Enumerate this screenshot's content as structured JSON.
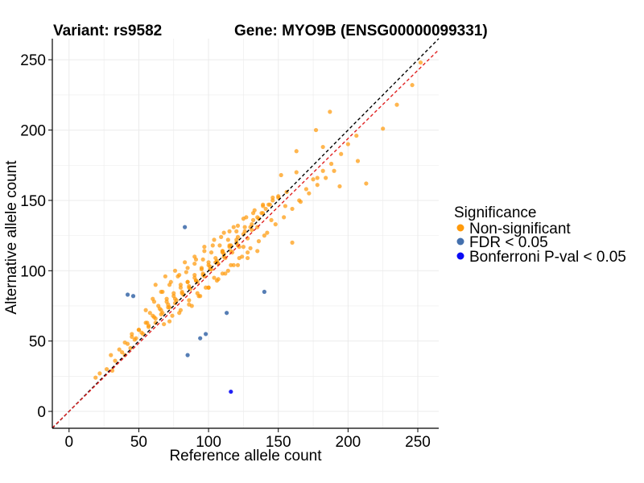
{
  "titles": {
    "variant": "Variant: rs9582",
    "gene": "Gene: MYO9B (ENSG00000099331)"
  },
  "legend": {
    "title": "Significance",
    "placement": "right",
    "items": [
      {
        "label": "Non-significant",
        "color": "#FF9A0B"
      },
      {
        "label": "FDR < 0.05",
        "color": "#4470AD"
      },
      {
        "label": "Bonferroni P-val < 0.05",
        "color": "#0A0AF5"
      }
    ]
  },
  "chart_data": {
    "type": "scatter",
    "xlabel": "Reference allele count",
    "ylabel": "Alternative allele count",
    "xlim": [
      -12,
      265
    ],
    "ylim": [
      -12,
      265
    ],
    "x_ticks": [
      0,
      50,
      100,
      150,
      200,
      250
    ],
    "y_ticks": [
      0,
      50,
      100,
      150,
      200,
      250
    ],
    "grid": true,
    "reference_lines": [
      {
        "name": "identity",
        "slope": 1.0,
        "intercept": 0,
        "color": "#000000",
        "style": "dashed"
      },
      {
        "name": "fit",
        "slope": 0.97,
        "intercept": 0,
        "color": "#E02020",
        "style": "dashed"
      }
    ],
    "series": [
      {
        "category": "Non-significant",
        "color": "#FF9A0B",
        "x": [
          246,
          235,
          225,
          252,
          187,
          163,
          163,
          178,
          194,
          182,
          207,
          213,
          177,
          152,
          150,
          143,
          139,
          135,
          131,
          128,
          125,
          110,
          160,
          22,
          19,
          27,
          33,
          31,
          38,
          40,
          44,
          48,
          53,
          57,
          62,
          66,
          71,
          76,
          81,
          86,
          91,
          96,
          101,
          106,
          111,
          116,
          121,
          126,
          131,
          136,
          141,
          146,
          58,
          64,
          70,
          75,
          80,
          85,
          90,
          95,
          100,
          105,
          110,
          115,
          120,
          125,
          130,
          135,
          45,
          50,
          55,
          60,
          65,
          70,
          75,
          80,
          85,
          90,
          95,
          100,
          105,
          110,
          115,
          120,
          60,
          66,
          72,
          78,
          84,
          90,
          96,
          102,
          108,
          114,
          120,
          126,
          132,
          138,
          144,
          150,
          156,
          68,
          74,
          80,
          86,
          92,
          98,
          104,
          110,
          116,
          122,
          128,
          62,
          69,
          76,
          83,
          90,
          97,
          104,
          111,
          118,
          125,
          132,
          139,
          146,
          72,
          79,
          86,
          93,
          100,
          107,
          114,
          121,
          128,
          135,
          55,
          61,
          67,
          73,
          79,
          85,
          91,
          97,
          103,
          109,
          115,
          121,
          127,
          133,
          139,
          88,
          94,
          100,
          106,
          112,
          118,
          124,
          130,
          136,
          142,
          148,
          154,
          160,
          166,
          172,
          178,
          184,
          190,
          140,
          145,
          155,
          165,
          170,
          175,
          182,
          188,
          195,
          200,
          206,
          42,
          47,
          52,
          57,
          62,
          67,
          72,
          77,
          82,
          87,
          92,
          97,
          102,
          107,
          112,
          117,
          122,
          30,
          36,
          40,
          45,
          50,
          56,
          61,
          66,
          71,
          76,
          81,
          86,
          91,
          96,
          101,
          106,
          111,
          116,
          121
        ],
        "y": [
          232,
          218,
          201,
          248,
          213,
          185,
          170,
          166,
          160,
          188,
          178,
          162,
          200,
          168,
          152,
          147,
          141,
          131,
          129,
          123,
          117,
          113,
          120,
          27,
          24,
          30,
          36,
          29,
          42,
          40,
          45,
          52,
          55,
          60,
          63,
          69,
          74,
          77,
          84,
          88,
          93,
          98,
          103,
          107,
          112,
          118,
          124,
          128,
          133,
          137,
          144,
          150,
          70,
          75,
          80,
          82,
          90,
          92,
          95,
          101,
          104,
          106,
          114,
          117,
          120,
          126,
          131,
          138,
          55,
          58,
          63,
          68,
          73,
          78,
          84,
          88,
          92,
          97,
          102,
          106,
          109,
          114,
          118,
          122,
          80,
          85,
          90,
          96,
          99,
          105,
          108,
          113,
          118,
          122,
          128,
          131,
          136,
          141,
          147,
          153,
          156,
          62,
          68,
          72,
          79,
          84,
          88,
          95,
          98,
          104,
          109,
          113,
          90,
          96,
          100,
          106,
          110,
          117,
          122,
          127,
          131,
          137,
          141,
          147,
          152,
          64,
          70,
          76,
          82,
          88,
          94,
          100,
          104,
          109,
          114,
          72,
          78,
          85,
          92,
          97,
          102,
          108,
          114,
          118,
          124,
          128,
          132,
          138,
          143,
          146,
          75,
          82,
          88,
          93,
          98,
          104,
          110,
          116,
          121,
          127,
          133,
          138,
          144,
          149,
          155,
          161,
          166,
          171,
          125,
          136,
          146,
          150,
          158,
          165,
          171,
          176,
          183,
          190,
          196,
          48,
          51,
          56,
          61,
          66,
          70,
          74,
          79,
          83,
          87,
          92,
          96,
          101,
          105,
          109,
          113,
          117,
          40,
          44,
          49,
          53,
          58,
          63,
          67,
          72,
          76,
          80,
          85,
          89,
          93,
          97,
          101,
          106,
          110,
          114,
          118
        ]
      },
      {
        "category": "FDR < 0.05",
        "color": "#4470AD",
        "x": [
          42,
          46,
          83,
          94,
          85,
          98,
          113,
          140
        ],
        "y": [
          83,
          82,
          131,
          52,
          40,
          55,
          70,
          85
        ]
      },
      {
        "category": "Bonferroni P-val < 0.05",
        "color": "#0A0AF5",
        "x": [
          116
        ],
        "y": [
          14
        ]
      }
    ]
  }
}
